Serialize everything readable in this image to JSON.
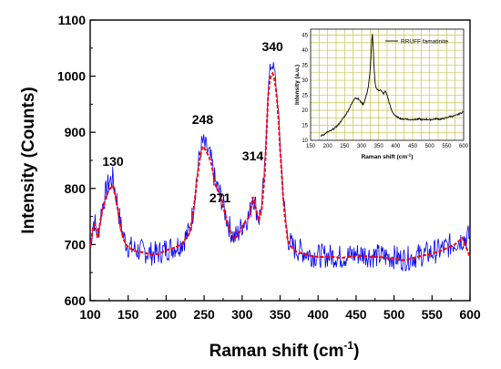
{
  "chart_data": [
    {
      "type": "line",
      "title": "",
      "xlabel": "Raman shift (cm",
      "xlabel_sup": "-1",
      "xlabel_close": ")",
      "ylabel": "Intensity (Counts)",
      "xlim": [
        100,
        600
      ],
      "ylim": [
        600,
        1100
      ],
      "x_ticks": [
        100,
        150,
        200,
        250,
        300,
        350,
        400,
        450,
        500,
        550,
        600
      ],
      "y_ticks": [
        600,
        700,
        800,
        900,
        1000,
        1100
      ],
      "grid": false,
      "legend": "none",
      "series": [
        {
          "color": "#0000ee",
          "style": "solid noisy",
          "x": [
            100,
            105,
            110,
            115,
            120,
            125,
            130,
            135,
            140,
            145,
            150,
            160,
            170,
            180,
            190,
            200,
            210,
            220,
            230,
            235,
            240,
            245,
            248,
            252,
            256,
            260,
            265,
            271,
            275,
            280,
            285,
            290,
            295,
            300,
            305,
            310,
            314,
            318,
            322,
            326,
            330,
            334,
            337,
            340,
            343,
            347,
            350,
            355,
            360,
            365,
            370,
            380,
            390,
            400,
            410,
            420,
            430,
            440,
            450,
            460,
            470,
            480,
            490,
            500,
            510,
            520,
            530,
            540,
            550,
            560,
            570,
            580,
            590,
            600
          ],
          "values": [
            702,
            745,
            715,
            762,
            790,
            812,
            818,
            780,
            735,
            710,
            697,
            690,
            688,
            684,
            685,
            692,
            696,
            702,
            722,
            755,
            818,
            868,
            882,
            872,
            862,
            845,
            808,
            790,
            770,
            745,
            725,
            712,
            720,
            735,
            745,
            752,
            790,
            768,
            745,
            770,
            838,
            972,
            1015,
            1022,
            1005,
            950,
            880,
            770,
            712,
            698,
            692,
            688,
            682,
            680,
            680,
            680,
            678,
            680,
            683,
            683,
            680,
            680,
            678,
            678,
            674,
            676,
            680,
            683,
            686,
            690,
            696,
            704,
            710,
            715
          ]
        },
        {
          "color": "#ff0000",
          "style": "dashed fit",
          "x": [
            100,
            105,
            110,
            115,
            120,
            125,
            130,
            135,
            140,
            145,
            150,
            160,
            170,
            180,
            190,
            200,
            210,
            220,
            230,
            235,
            240,
            245,
            248,
            252,
            256,
            260,
            265,
            271,
            275,
            280,
            285,
            290,
            295,
            300,
            305,
            310,
            314,
            318,
            322,
            326,
            330,
            334,
            337,
            340,
            343,
            347,
            350,
            355,
            360,
            365,
            370,
            380,
            390,
            400,
            410,
            420,
            430,
            440,
            450,
            460,
            470,
            480,
            490,
            500,
            510,
            520,
            530,
            540,
            550,
            560,
            570,
            580,
            590,
            600
          ],
          "values": [
            695,
            742,
            712,
            755,
            782,
            798,
            805,
            775,
            730,
            705,
            695,
            688,
            686,
            682,
            683,
            690,
            694,
            700,
            718,
            748,
            808,
            860,
            875,
            868,
            858,
            842,
            805,
            788,
            768,
            742,
            722,
            710,
            718,
            732,
            742,
            750,
            785,
            765,
            742,
            765,
            830,
            960,
            1000,
            1005,
            995,
            945,
            870,
            765,
            708,
            695,
            688,
            684,
            680,
            678,
            678,
            678,
            676,
            678,
            680,
            680,
            678,
            678,
            676,
            676,
            672,
            674,
            678,
            681,
            684,
            688,
            694,
            700,
            712,
            678
          ]
        }
      ],
      "annotations": [
        {
          "text": "130",
          "x": 130,
          "y": 840
        },
        {
          "text": "248",
          "x": 248,
          "y": 915
        },
        {
          "text": "271",
          "x": 271,
          "y": 775
        },
        {
          "text": "314",
          "x": 314,
          "y": 850
        },
        {
          "text": "340",
          "x": 340,
          "y": 1045
        }
      ]
    },
    {
      "type": "line",
      "title": "",
      "xlabel": "Raman shift (cm",
      "xlabel_sup": "-1",
      "xlabel_close": ")",
      "ylabel": "Intensity (a.u.)",
      "xlim": [
        150,
        600
      ],
      "ylim": [
        10,
        47
      ],
      "x_ticks": [
        150,
        200,
        250,
        300,
        350,
        400,
        450,
        500,
        550,
        600
      ],
      "y_ticks": [
        10,
        15,
        20,
        25,
        30,
        35,
        40,
        45
      ],
      "grid": true,
      "legend": "top-right",
      "series": [
        {
          "name": "RRUFF famatinite",
          "color": "#000000",
          "x": [
            180,
            190,
            200,
            210,
            220,
            230,
            240,
            250,
            260,
            270,
            280,
            290,
            300,
            305,
            310,
            315,
            320,
            325,
            328,
            331,
            334,
            337,
            340,
            345,
            350,
            355,
            360,
            365,
            370,
            375,
            380,
            385,
            390,
            400,
            410,
            420,
            430,
            440,
            450,
            460,
            470,
            480,
            490,
            500,
            510,
            520,
            530,
            540,
            550,
            560,
            570,
            580,
            590,
            600
          ],
          "values": [
            11.5,
            12.0,
            12.8,
            13.2,
            14.0,
            15.0,
            16.5,
            18.0,
            19.8,
            22.0,
            24.2,
            23.8,
            22.5,
            22.0,
            23.5,
            25.5,
            28.0,
            33.0,
            39.0,
            46.0,
            41.0,
            33.0,
            28.5,
            27.0,
            26.5,
            27.0,
            26.0,
            25.5,
            26.5,
            25.0,
            23.0,
            21.0,
            19.5,
            18.0,
            17.5,
            17.0,
            17.2,
            16.8,
            17.0,
            16.9,
            17.1,
            16.8,
            17.0,
            16.8,
            17.0,
            17.2,
            17.0,
            17.2,
            17.5,
            18.0,
            18.0,
            18.4,
            19.0,
            19.5
          ]
        }
      ]
    }
  ]
}
